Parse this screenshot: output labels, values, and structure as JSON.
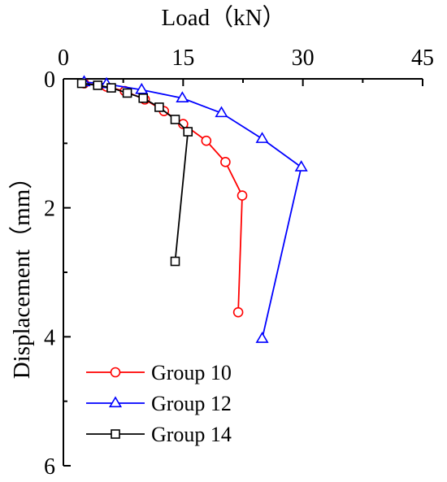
{
  "chart_data": {
    "type": "line",
    "title": "",
    "xlabel": "Load（kN）",
    "ylabel": "Displacement（mm）",
    "x_axis_position": "top",
    "y_axis_inverted": true,
    "xlim": [
      0,
      45
    ],
    "ylim": [
      0,
      6
    ],
    "xticks": [
      "0",
      "15",
      "30",
      "45"
    ],
    "yticks": [
      "0",
      "2",
      "4",
      "6"
    ],
    "grid": false,
    "legend_position": "bottom-left",
    "series": [
      {
        "name": "Group 10",
        "color": "#ff0000",
        "marker": "circle",
        "points": [
          {
            "x": 2.6,
            "y": 0.07
          },
          {
            "x": 5.4,
            "y": 0.12
          },
          {
            "x": 7.7,
            "y": 0.19
          },
          {
            "x": 10.2,
            "y": 0.32
          },
          {
            "x": 12.6,
            "y": 0.5
          },
          {
            "x": 15.0,
            "y": 0.7
          },
          {
            "x": 17.9,
            "y": 0.96
          },
          {
            "x": 20.3,
            "y": 1.29
          },
          {
            "x": 22.4,
            "y": 1.81
          },
          {
            "x": 21.9,
            "y": 3.62
          }
        ]
      },
      {
        "name": "Group 12",
        "color": "#0000ff",
        "marker": "triangle",
        "points": [
          {
            "x": 2.6,
            "y": 0.05
          },
          {
            "x": 5.4,
            "y": 0.08
          },
          {
            "x": 9.8,
            "y": 0.17
          },
          {
            "x": 14.9,
            "y": 0.3
          },
          {
            "x": 19.8,
            "y": 0.53
          },
          {
            "x": 24.9,
            "y": 0.93
          },
          {
            "x": 29.8,
            "y": 1.37
          },
          {
            "x": 24.9,
            "y": 4.03
          }
        ]
      },
      {
        "name": "Group 14",
        "color": "#000000",
        "marker": "square",
        "points": [
          {
            "x": 2.3,
            "y": 0.07
          },
          {
            "x": 4.3,
            "y": 0.1
          },
          {
            "x": 6.0,
            "y": 0.14
          },
          {
            "x": 8.0,
            "y": 0.22
          },
          {
            "x": 10.0,
            "y": 0.3
          },
          {
            "x": 12.0,
            "y": 0.44
          },
          {
            "x": 14.0,
            "y": 0.63
          },
          {
            "x": 15.6,
            "y": 0.82
          },
          {
            "x": 14.0,
            "y": 2.83
          }
        ]
      }
    ]
  }
}
